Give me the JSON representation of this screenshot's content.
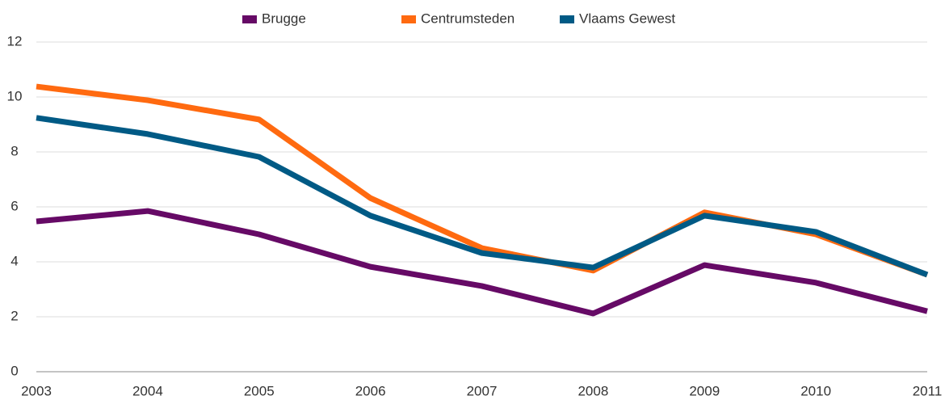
{
  "chart_data": {
    "type": "line",
    "categories": [
      "2003",
      "2004",
      "2005",
      "2006",
      "2007",
      "2008",
      "2009",
      "2010",
      "2011"
    ],
    "series": [
      {
        "name": "Brugge",
        "color": "#660a66",
        "values": [
          5.47,
          5.85,
          5.0,
          3.82,
          3.12,
          2.12,
          3.88,
          3.24,
          2.2
        ]
      },
      {
        "name": "Centrumsteden",
        "color": "#ff6a10",
        "values": [
          10.38,
          9.88,
          9.18,
          6.32,
          4.5,
          3.68,
          5.8,
          5.0,
          3.53
        ]
      },
      {
        "name": "Vlaams Gewest",
        "color": "#005a85",
        "values": [
          9.24,
          8.65,
          7.82,
          5.68,
          4.32,
          3.79,
          5.68,
          5.09,
          3.53
        ]
      }
    ],
    "ylim": [
      0,
      12
    ],
    "yticks": [
      0,
      2,
      4,
      6,
      8,
      10,
      12
    ],
    "grid": true,
    "legend": "top"
  }
}
